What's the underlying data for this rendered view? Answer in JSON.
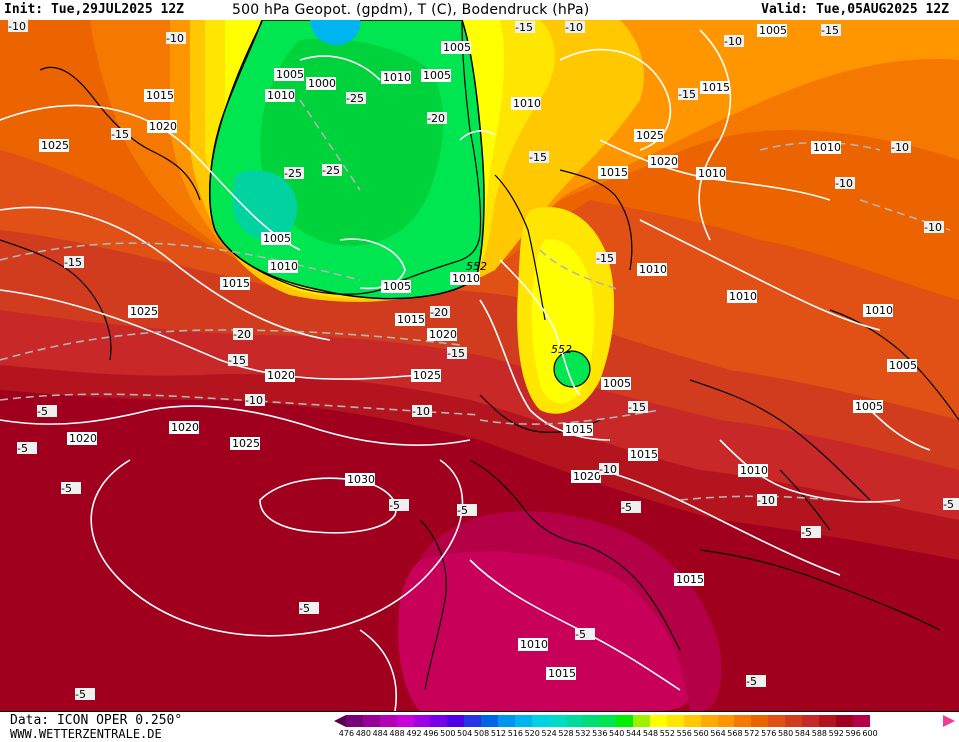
{
  "header": {
    "init": "Init: Tue,29JUL2025 12Z",
    "title": "500 hPa Geopot. (gpdm), T (C), Bodendruck (hPa)",
    "valid": "Valid: Tue,05AUG2025 12Z"
  },
  "footer": {
    "data_source": "Data: ICON OPER 0.250°",
    "website": "WWW.WETTERZENTRALE.DE"
  },
  "legend": {
    "ticks": [
      "476",
      "480",
      "484",
      "488",
      "492",
      "496",
      "500",
      "504",
      "508",
      "512",
      "516",
      "520",
      "524",
      "528",
      "532",
      "536",
      "540",
      "544",
      "548",
      "552",
      "556",
      "560",
      "564",
      "568",
      "572",
      "576",
      "580",
      "584",
      "588",
      "592",
      "596",
      "600"
    ],
    "colors": [
      "#5a0050",
      "#780078",
      "#960096",
      "#b400b4",
      "#c800dc",
      "#a000e6",
      "#7800e6",
      "#5000e6",
      "#2832e6",
      "#0064e6",
      "#0096f0",
      "#00b4f0",
      "#00d2e6",
      "#00dcc8",
      "#00dca0",
      "#00dc78",
      "#00e650",
      "#00f000",
      "#a0f000",
      "#ffff00",
      "#ffe600",
      "#ffc800",
      "#ffaa00",
      "#ff9600",
      "#f57800",
      "#eb6400",
      "#e15014",
      "#d23c1e",
      "#c82828",
      "#b4141e",
      "#a0001e",
      "#b40046",
      "#d20078"
    ]
  },
  "map": {
    "geopotential_label": "552",
    "pressure_labels": [
      "1005",
      "1000",
      "1010",
      "1005",
      "1005",
      "1015",
      "1020",
      "1025",
      "1010",
      "1005",
      "1010",
      "1015",
      "1005",
      "1010",
      "1015",
      "1010",
      "1025",
      "1020",
      "1010",
      "1015",
      "1020",
      "1025",
      "1015",
      "1020",
      "1025",
      "1030",
      "1020",
      "1015",
      "1020",
      "1025",
      "1020",
      "1005",
      "1015",
      "1015",
      "1010",
      "1005",
      "1010",
      "1010",
      "1010",
      "1010",
      "1005",
      "1015",
      "1010",
      "1005"
    ],
    "temp_labels": [
      "-10",
      "-15",
      "-15",
      "-15",
      "-20",
      "-25",
      "-25",
      "-25",
      "-20",
      "-15",
      "-15",
      "-15",
      "-20",
      "-15",
      "-15",
      "-10",
      "-10",
      "-10",
      "-5",
      "-5",
      "-5",
      "-5",
      "-5",
      "-5",
      "-5",
      "-5",
      "-10",
      "-10",
      "-15",
      "-15",
      "-10",
      "-10",
      "-10",
      "-5",
      "-5",
      "-5",
      "-10",
      "-5",
      "-10"
    ],
    "colors": {
      "deep_red": "#a0001e",
      "red": "#c82828",
      "red_orange": "#d23c1e",
      "orange_red": "#e15014",
      "orange": "#eb6400",
      "dark_orange": "#f57800",
      "light_orange": "#ff9600",
      "amber": "#ffaa00",
      "yellow_orange": "#ffc800",
      "yellow": "#ffe600",
      "bright_yellow": "#ffff00",
      "green": "#00e650",
      "dark_green": "#00d23c",
      "teal": "#00d2a0",
      "cyan": "#00b4f0",
      "magenta": "#c8005a",
      "isobar": "#ffffff",
      "isotherm": "#b4b4b4",
      "coast": "#000000"
    }
  }
}
